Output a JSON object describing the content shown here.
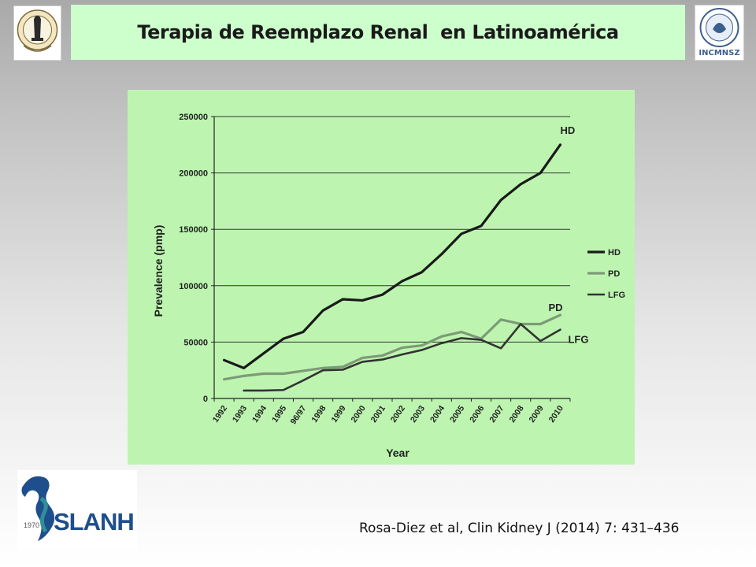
{
  "slide": {
    "title": "Terapia de Reemplazo Renal  en Latinoamérica",
    "citation": "Rosa-Diez et al, Clin Kidney J (2014) 7: 431–436"
  },
  "logos": {
    "right_caption": "INCMNSZ",
    "slanh_text": "SLANH",
    "slanh_year": "1970"
  },
  "colors": {
    "panel": "#bdf5b0",
    "hd": "#1a1a1a",
    "pd": "#7d9a76",
    "lfg": "#333333",
    "title_banner": "#ccffcc",
    "slanh_blue": "#1f4e8c",
    "slanh_teal": "#2f8f9a"
  },
  "chart_data": {
    "type": "line",
    "title": "",
    "xlabel": "Year",
    "ylabel": "Prevalence (pmp)",
    "ylim": [
      0,
      250000
    ],
    "yticks": [
      "0",
      "50000",
      "100000",
      "150000",
      "200000",
      "250000"
    ],
    "categories": [
      "1992",
      "1993",
      "1994",
      "1995",
      "96/97",
      "1998",
      "1999",
      "2000",
      "2001",
      "2002",
      "2003",
      "2004",
      "2005",
      "2006",
      "2007",
      "2008",
      "2009",
      "2010"
    ],
    "grid": "horizontal",
    "legend_position": "right",
    "series": [
      {
        "name": "HD",
        "end_label": "HD",
        "values": [
          34000,
          27000,
          40000,
          53000,
          59000,
          78000,
          88000,
          87000,
          92000,
          104000,
          112000,
          128000,
          146000,
          153000,
          176000,
          190000,
          200000,
          225000
        ]
      },
      {
        "name": "PD",
        "end_label": "PD",
        "values": [
          17000,
          20000,
          22000,
          22000,
          24500,
          27000,
          28000,
          36000,
          38000,
          45000,
          47000,
          55000,
          59000,
          53000,
          70000,
          66000,
          66000,
          74000
        ]
      },
      {
        "name": "LFG",
        "end_label": "LFG",
        "values": [
          null,
          7000,
          7000,
          7500,
          16000,
          25000,
          25500,
          32500,
          34500,
          39000,
          43000,
          49000,
          53500,
          52000,
          44500,
          66000,
          51000,
          61000
        ]
      }
    ]
  }
}
